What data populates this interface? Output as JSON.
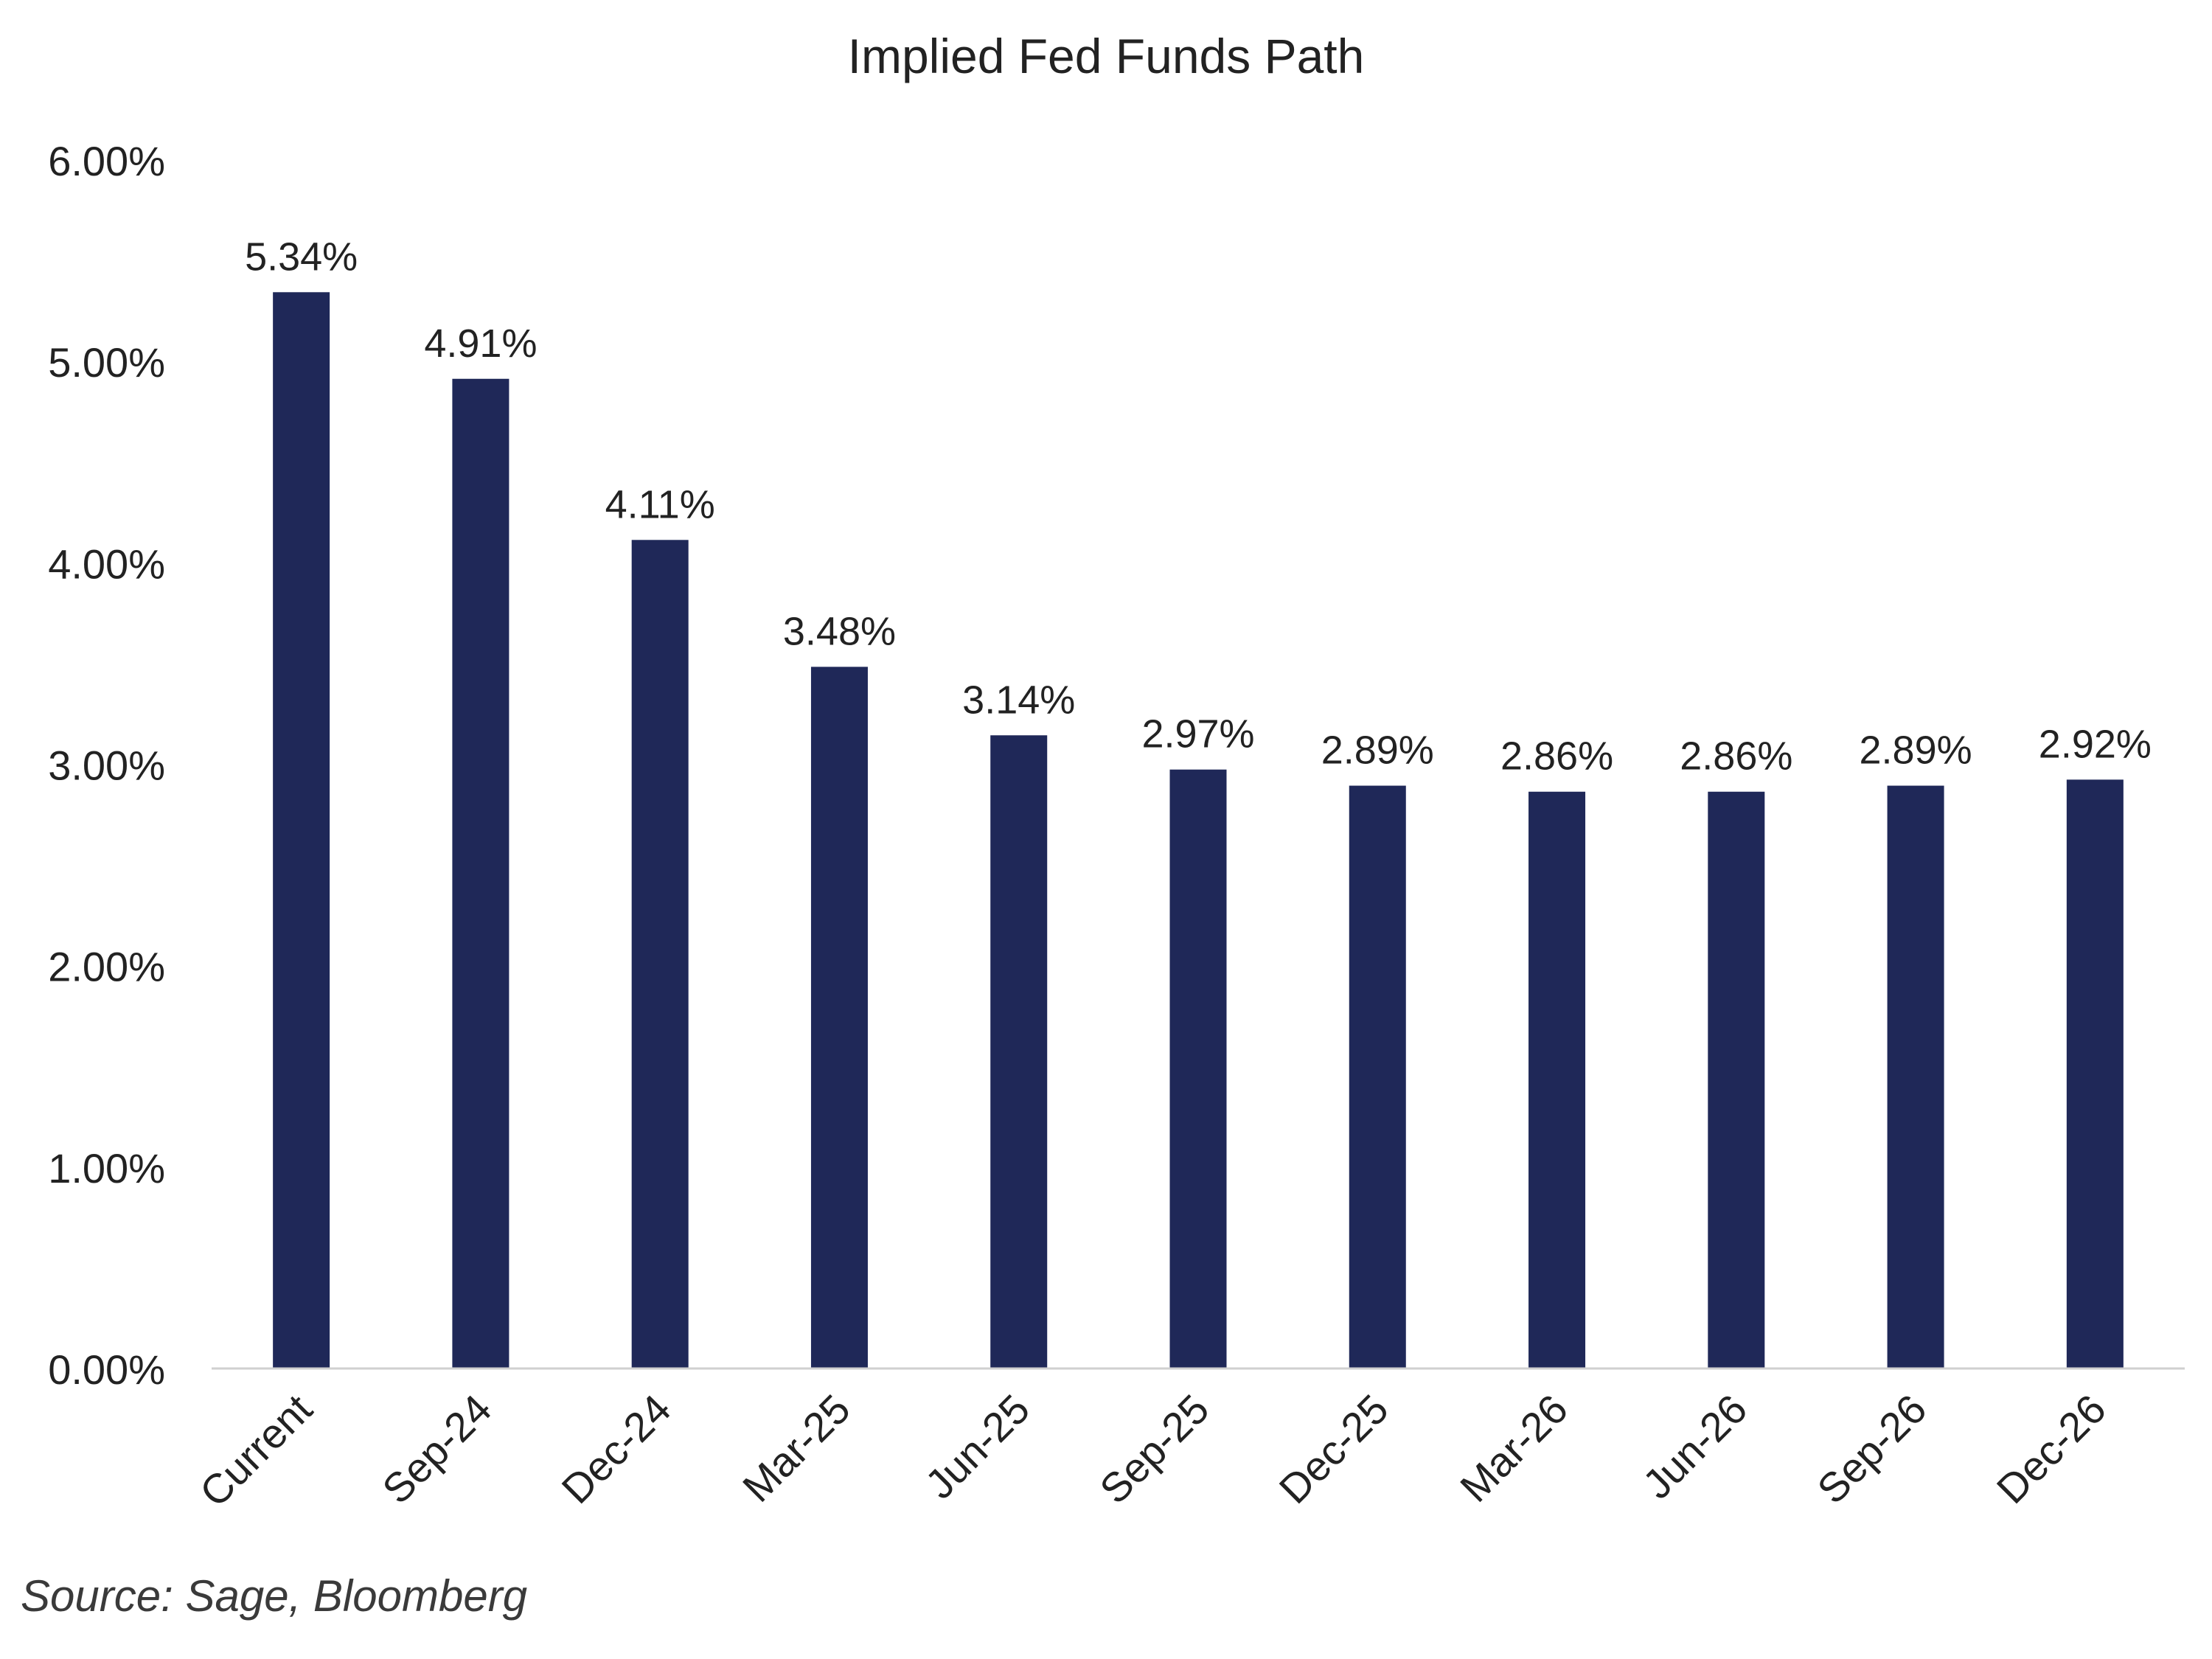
{
  "chart_data": {
    "type": "bar",
    "title": "Implied Fed Funds Path",
    "xlabel": "",
    "ylabel": "",
    "categories": [
      "Current",
      "Sep-24",
      "Dec-24",
      "Mar-25",
      "Jun-25",
      "Sep-25",
      "Dec-25",
      "Mar-26",
      "Jun-26",
      "Sep-26",
      "Dec-26"
    ],
    "values": [
      5.34,
      4.91,
      4.11,
      3.48,
      3.14,
      2.97,
      2.89,
      2.86,
      2.86,
      2.89,
      2.92
    ],
    "value_labels": [
      "5.34%",
      "4.91%",
      "4.11%",
      "3.48%",
      "3.14%",
      "2.97%",
      "2.89%",
      "2.86%",
      "2.86%",
      "2.89%",
      "2.92%"
    ],
    "ylim": [
      0,
      6
    ],
    "yticks": [
      0,
      1,
      2,
      3,
      4,
      5,
      6
    ],
    "ytick_labels": [
      "0.00%",
      "1.00%",
      "2.00%",
      "3.00%",
      "4.00%",
      "5.00%",
      "6.00%"
    ],
    "grid": false,
    "legend": "none",
    "bar_color": "#1f2858",
    "axis_color": "#d0d0d0"
  },
  "source_note": "Source: Sage, Bloomberg"
}
